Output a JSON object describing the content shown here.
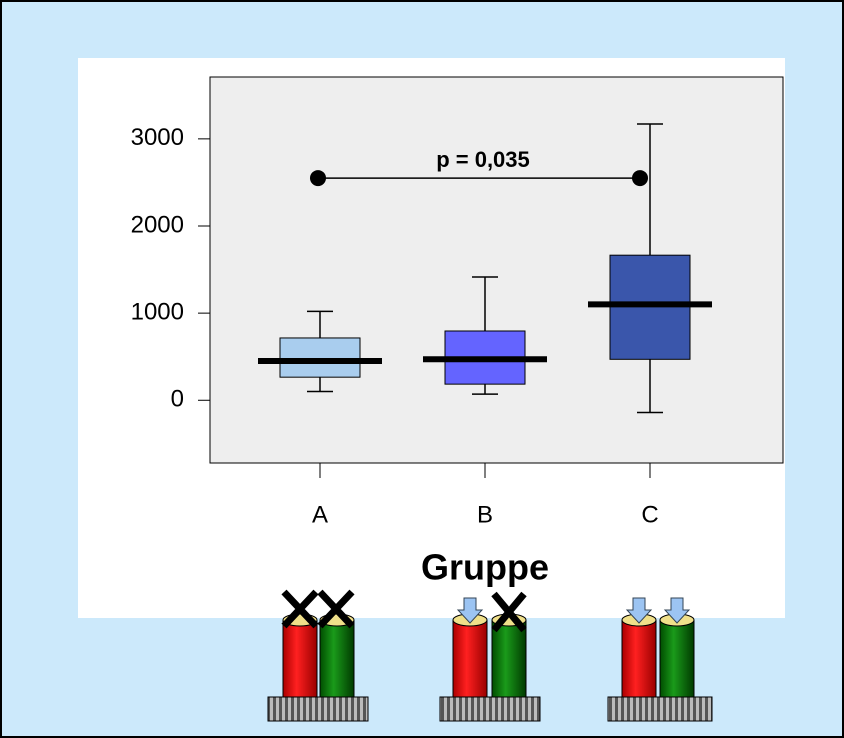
{
  "chart_data": {
    "type": "box",
    "categories": [
      "A",
      "B",
      "C"
    ],
    "boxes": [
      {
        "min": 100,
        "q1": 265,
        "median": 450,
        "q3": 715,
        "max": 1020,
        "color": "#a9cdee"
      },
      {
        "min": 70,
        "q1": 185,
        "median": 470,
        "q3": 795,
        "max": 1415,
        "color": "#6464ff"
      },
      {
        "min": -140,
        "q1": 470,
        "median": 1100,
        "q3": 1665,
        "max": 3170,
        "color": "#3a56ab"
      }
    ],
    "ylim": [
      -720,
      3710
    ],
    "yticks": [
      0,
      1000,
      2000,
      3000
    ],
    "xlabel": "Gruppe",
    "annotation": {
      "text": "p = 0,035",
      "y": 2550,
      "between": [
        "A",
        "C"
      ]
    }
  }
}
